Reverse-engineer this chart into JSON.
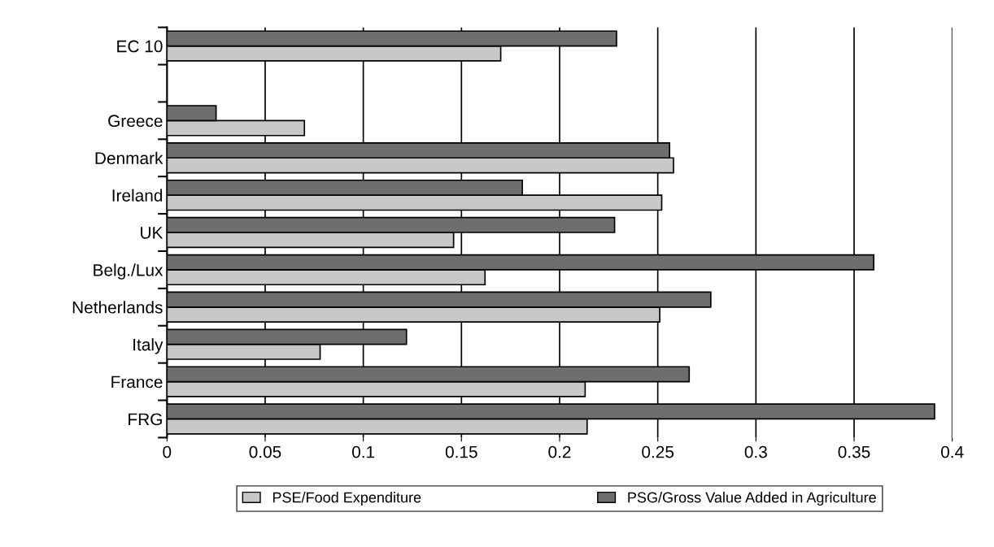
{
  "chart_data": {
    "type": "bar",
    "orientation": "horizontal",
    "categories": [
      "EC 10",
      null,
      "Greece",
      "Denmark",
      "Ireland",
      "UK",
      "Belg./Lux",
      "Netherlands",
      "Italy",
      "France",
      "FRG"
    ],
    "series": [
      {
        "name": "PSE/Food Expenditure",
        "color": "#c8c8c8",
        "values": [
          0.17,
          null,
          0.07,
          0.258,
          0.252,
          0.146,
          0.162,
          0.251,
          0.078,
          0.213,
          0.214
        ]
      },
      {
        "name": "PSG/Gross Value Added in Agriculture",
        "color": "#6e6e6e",
        "values": [
          0.229,
          null,
          0.025,
          0.256,
          0.181,
          0.228,
          0.36,
          0.277,
          0.122,
          0.266,
          0.391
        ]
      }
    ],
    "xlim": [
      0,
      0.4
    ],
    "xticks": [
      0,
      0.05,
      0.1,
      0.15,
      0.2,
      0.25,
      0.3,
      0.35,
      0.4
    ],
    "grid": "x",
    "legend": "bottom"
  }
}
